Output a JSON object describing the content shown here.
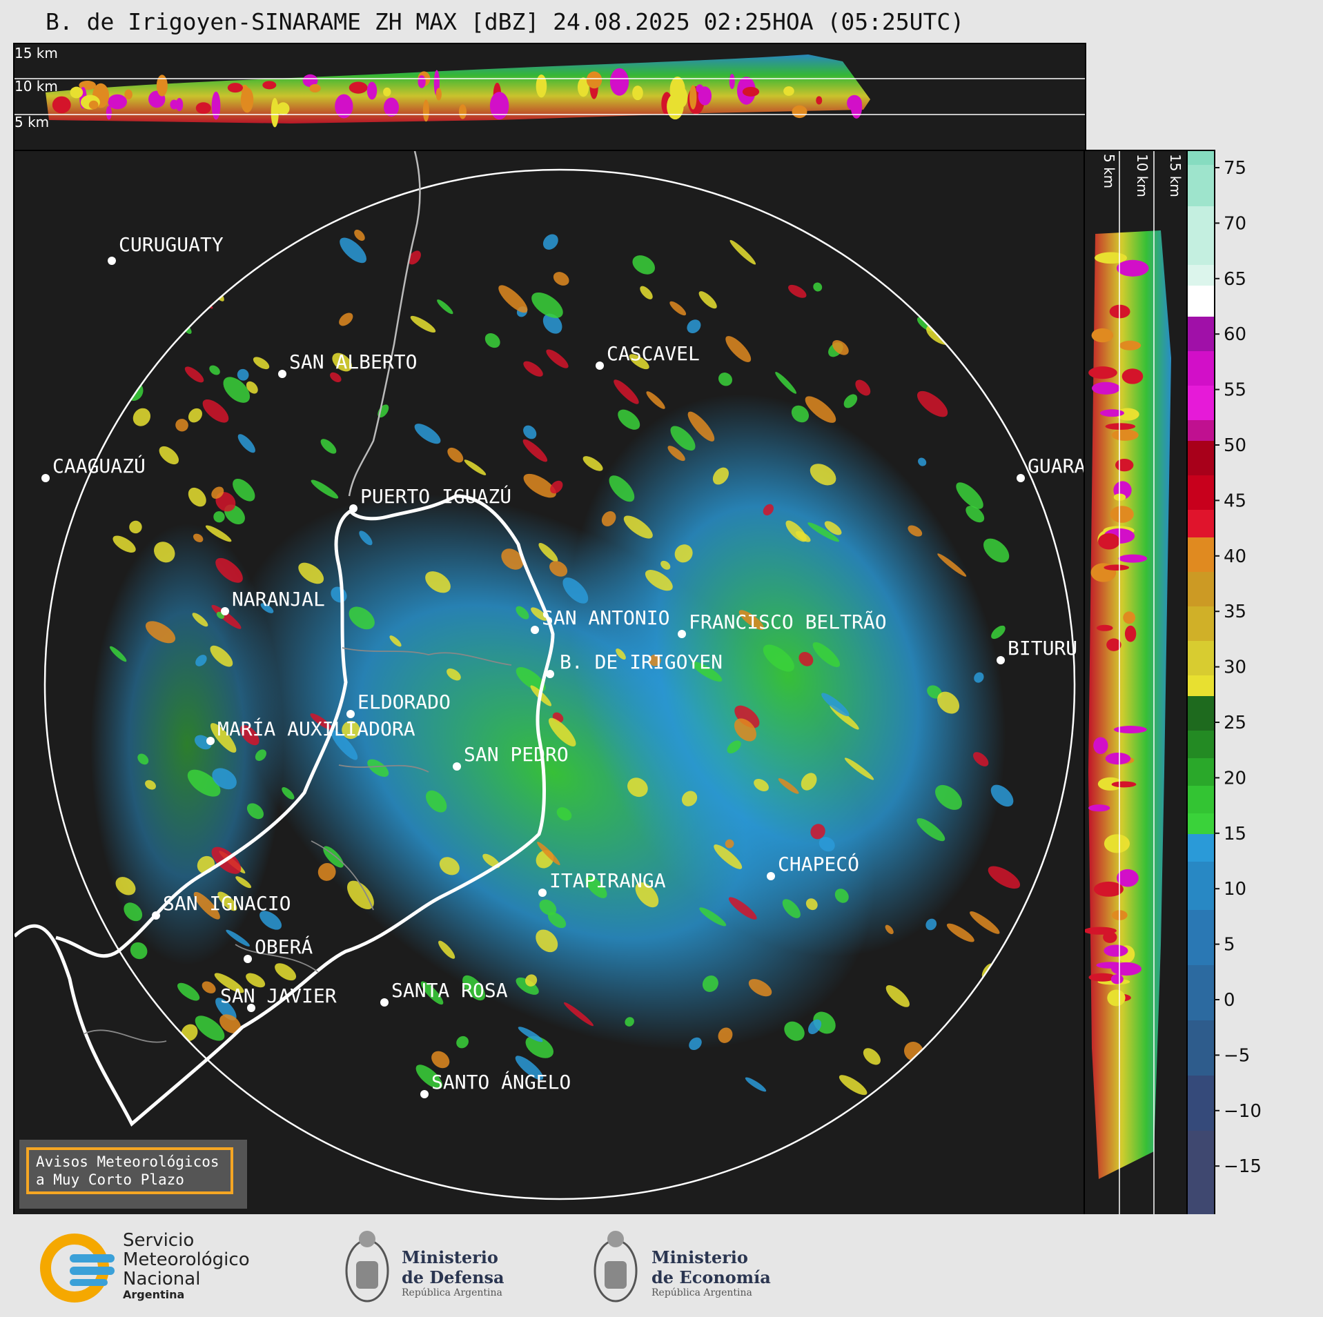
{
  "title": "B. de Irigoyen-SINARAME ZH MAX [dBZ] 24.08.2025 02:25HOA (05:25UTC)",
  "top_panel": {
    "height_labels": [
      "15 km",
      "10 km",
      "5 km"
    ]
  },
  "side_panel": {
    "height_labels": [
      "5 km",
      "10 km",
      "15 km"
    ]
  },
  "cities": [
    {
      "name": "CURUGUATY"
    },
    {
      "name": "SAN ALBERTO"
    },
    {
      "name": "CASCAVEL"
    },
    {
      "name": "CAAGUAZÚ"
    },
    {
      "name": "GUARA"
    },
    {
      "name": "PUERTO IGUAZÚ"
    },
    {
      "name": "NARANJAL"
    },
    {
      "name": "SAN ANTONIO"
    },
    {
      "name": "FRANCISCO BELTRÃO"
    },
    {
      "name": "BITURU"
    },
    {
      "name": "B. DE IRIGOYEN"
    },
    {
      "name": "ELDORADO"
    },
    {
      "name": "MARÍA AUXILIADORA"
    },
    {
      "name": "SAN PEDRO"
    },
    {
      "name": "CHAPECÓ"
    },
    {
      "name": "ITAPIRANGA"
    },
    {
      "name": "SAN IGNACIO"
    },
    {
      "name": "OBERÁ"
    },
    {
      "name": "SAN JAVIER"
    },
    {
      "name": "SANTA ROSA"
    },
    {
      "name": "SANTO ÁNGELO"
    }
  ],
  "colorbar": {
    "units": "dBZ",
    "ticks": [
      "75",
      "70",
      "65",
      "60",
      "55",
      "50",
      "45",
      "40",
      "35",
      "30",
      "25",
      "20",
      "15",
      "10",
      "5",
      "0",
      "−5",
      "−10",
      "−15"
    ],
    "colors": {
      "very_light": "#3f4870",
      "light_blue": "#2a9ad8",
      "green": "#3ad23a",
      "yellow": "#e8e030",
      "orange": "#e08a20",
      "red": "#d4142a",
      "magenta": "#d20fc8",
      "white": "#ffffff",
      "mint": "#86dcc0"
    }
  },
  "notice": {
    "line1": "Avisos Meteorológicos",
    "line2": "a Muy Corto Plazo"
  },
  "logos": {
    "smn": {
      "line1": "Servicio",
      "line2": "Meteorológico",
      "line3": "Nacional",
      "line4": "Argentina"
    },
    "defensa": {
      "line1": "Ministerio",
      "line2": "de Defensa",
      "line3": "República Argentina"
    },
    "economia": {
      "line1": "Ministerio",
      "line2": "de Economía",
      "line3": "República Argentina"
    }
  }
}
